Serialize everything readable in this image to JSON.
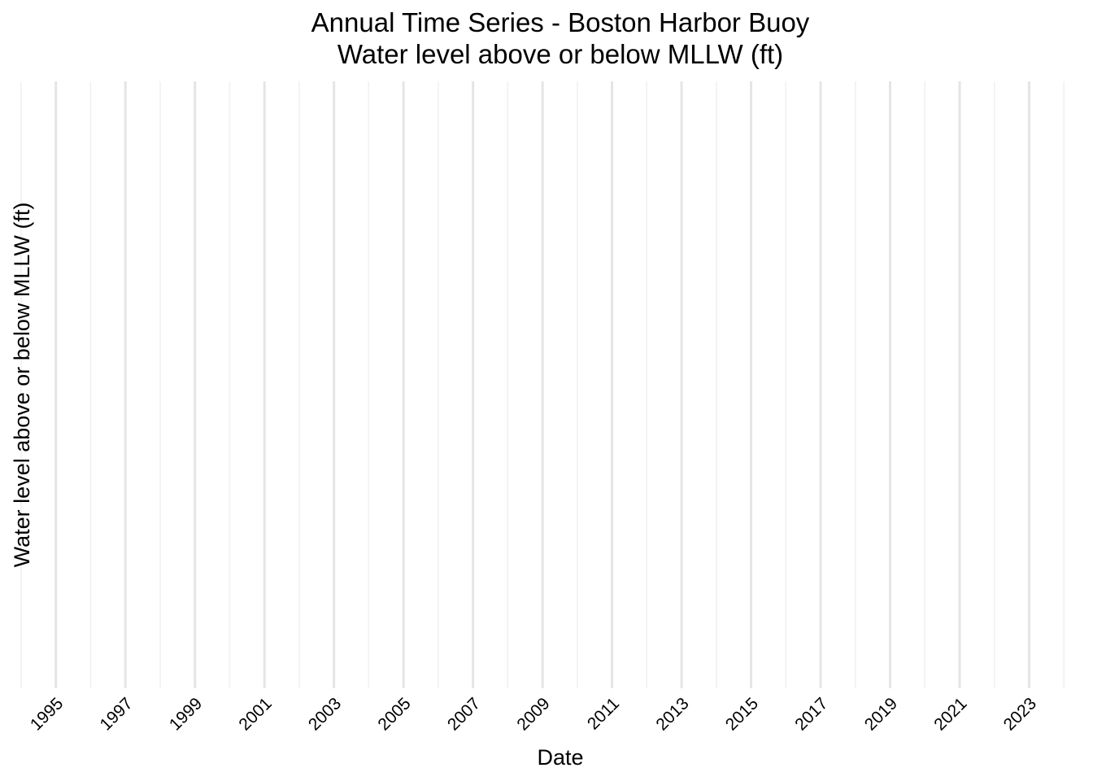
{
  "chart_data": {
    "type": "line",
    "title": "Annual Time Series - Boston Harbor Buoy",
    "subtitle": "Water level above or below MLLW (ft)",
    "xlabel": "Date",
    "ylabel": "Water level above or below MLLW (ft)",
    "x_scale": "date",
    "xlim": [
      "1994-01-01",
      "2025-01-01"
    ],
    "x_ticks": [
      "1995",
      "1997",
      "1999",
      "2001",
      "2003",
      "2005",
      "2007",
      "2009",
      "2011",
      "2013",
      "2015",
      "2017",
      "2019",
      "2021",
      "2023"
    ],
    "x_minor_ticks": [
      "1994",
      "1996",
      "1998",
      "2000",
      "2002",
      "2004",
      "2006",
      "2008",
      "2010",
      "2012",
      "2014",
      "2016",
      "2018",
      "2020",
      "2022",
      "2024",
      "2025"
    ],
    "y_ticks": [],
    "series": [],
    "grid": "vertical",
    "legend": "none",
    "colors": {
      "background": "#ffffff",
      "major_grid": "#e5e5e5",
      "minor_grid": "#f0f0f0",
      "text": "#000000",
      "tick_text": "#4d4d4d"
    }
  }
}
